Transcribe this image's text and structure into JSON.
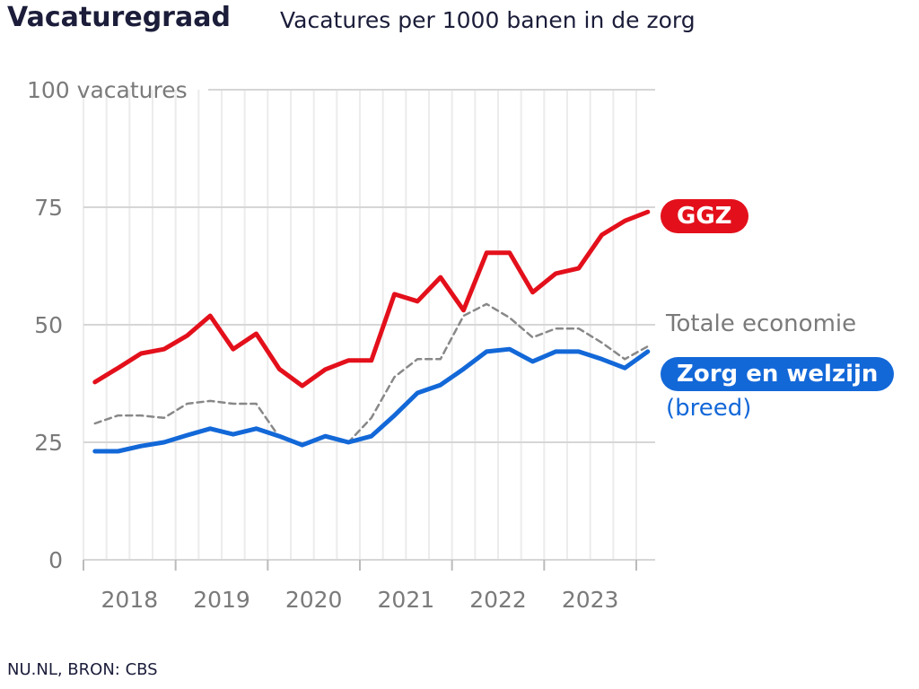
{
  "title": "Vacaturegraad",
  "subtitle": "Vacatures per 1000 banen in de zorg",
  "source": "NU.NL, BRON: CBS",
  "chart_data": {
    "type": "line",
    "title": "Vacaturegraad",
    "subtitle": "Vacatures per 1000 banen in de zorg",
    "x": [
      "2018 Q1",
      "2018 Q2",
      "2018 Q3",
      "2018 Q4",
      "2019 Q1",
      "2019 Q2",
      "2019 Q3",
      "2019 Q4",
      "2020 Q1",
      "2020 Q2",
      "2020 Q3",
      "2020 Q4",
      "2021 Q1",
      "2021 Q2",
      "2021 Q3",
      "2021 Q4",
      "2022 Q1",
      "2022 Q2",
      "2022 Q3",
      "2022 Q4",
      "2023 Q1",
      "2023 Q2",
      "2023 Q3",
      "2023 Q4",
      "2024 Q1"
    ],
    "x_tick_labels": [
      "2018",
      "2019",
      "2020",
      "2021",
      "2022",
      "2023"
    ],
    "y_ticks": [
      0,
      25,
      50,
      75,
      100
    ],
    "y_tick_labels": [
      "0",
      "25",
      "50",
      "75",
      "100 vacatures"
    ],
    "ylim": [
      0,
      100
    ],
    "grid": true,
    "legend": "direct labels right",
    "series": [
      {
        "name": "GGZ",
        "color": "#e3101b",
        "style": "solid",
        "values": [
          37.8,
          40.8,
          43.9,
          44.8,
          47.7,
          51.9,
          44.8,
          48.1,
          40.6,
          37.0,
          40.5,
          42.4,
          42.4,
          56.5,
          55.0,
          60.1,
          53.1,
          65.3,
          65.3,
          56.9,
          60.9,
          62.0,
          69.1,
          72.1,
          74.0
        ]
      },
      {
        "name": "Totale economie",
        "color": "#888888",
        "style": "dashed",
        "values": [
          29.0,
          30.7,
          30.7,
          30.2,
          33.2,
          33.8,
          33.2,
          33.2,
          26.1,
          24.2,
          26.1,
          25.0,
          30.2,
          38.9,
          42.7,
          42.7,
          51.9,
          54.4,
          51.5,
          47.3,
          49.2,
          49.2,
          46.2,
          42.7,
          45.4
        ]
      },
      {
        "name": "Zorg en welzijn",
        "name_extra": "(breed)",
        "color": "#1368d8",
        "style": "solid",
        "values": [
          23.1,
          23.1,
          24.2,
          25.0,
          26.5,
          27.9,
          26.7,
          27.9,
          26.3,
          24.4,
          26.3,
          25.0,
          26.3,
          30.7,
          35.5,
          37.2,
          40.6,
          44.3,
          44.8,
          42.2,
          44.3,
          44.3,
          42.7,
          40.8,
          44.3
        ]
      }
    ]
  }
}
